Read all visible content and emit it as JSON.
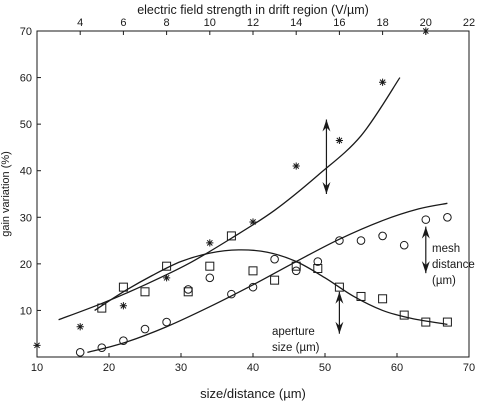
{
  "chart_data": {
    "type": "scatter",
    "title": "",
    "xlabel": "size/distance (µm)",
    "ylabel": "gain variation (%)",
    "x2label": "electric field strength in drift region (V/µm)",
    "xlim": [
      10,
      70
    ],
    "ylim": [
      0,
      70
    ],
    "x2lim": [
      2,
      22
    ],
    "xticks": [
      10,
      20,
      30,
      40,
      50,
      60,
      70
    ],
    "yticks": [
      10,
      20,
      30,
      40,
      50,
      60,
      70
    ],
    "x2ticks": [
      4,
      6,
      8,
      10,
      12,
      14,
      16,
      18,
      20,
      22
    ],
    "grid": false,
    "legend": "none",
    "annotations": {
      "mesh": [
        "mesh",
        "distance",
        "(µm)"
      ],
      "aperture": [
        "aperture",
        "size (µm)"
      ]
    },
    "series": [
      {
        "marker": "star",
        "axis": "top",
        "x": [
          2,
          4,
          6,
          8,
          10,
          12,
          14,
          16,
          18,
          20
        ],
        "y": [
          2.5,
          6.5,
          11,
          17,
          24.5,
          29,
          41,
          46.5,
          59,
          70
        ],
        "fit": [
          [
            3,
            8
          ],
          [
            5,
            11.5
          ],
          [
            7,
            15.5
          ],
          [
            9,
            20
          ],
          [
            11,
            25.5
          ],
          [
            13,
            31.5
          ],
          [
            15,
            39
          ],
          [
            17,
            47.5
          ],
          [
            18.8,
            60
          ]
        ]
      },
      {
        "marker": "square",
        "axis": "bottom",
        "x": [
          19,
          22,
          25,
          28,
          31,
          34,
          37,
          40,
          43,
          46,
          49,
          52,
          55,
          58,
          61,
          64,
          67
        ],
        "y": [
          10.5,
          15,
          14,
          19.5,
          14,
          19.5,
          26,
          18.5,
          16.5,
          19.5,
          19,
          15,
          13,
          12.5,
          9,
          7.5,
          7.5
        ],
        "fit": [
          [
            18,
            10
          ],
          [
            22,
            14
          ],
          [
            26,
            17.5
          ],
          [
            30,
            20.5
          ],
          [
            34,
            22.3
          ],
          [
            38,
            23
          ],
          [
            42,
            22.5
          ],
          [
            46,
            20.5
          ],
          [
            50,
            17
          ],
          [
            54,
            13
          ],
          [
            58,
            10
          ],
          [
            62,
            8.3
          ],
          [
            67,
            7
          ]
        ]
      },
      {
        "marker": "circle",
        "axis": "bottom",
        "x": [
          16,
          19,
          22,
          25,
          28,
          31,
          34,
          37,
          40,
          43,
          46,
          49,
          52,
          55,
          58,
          61,
          64,
          67
        ],
        "y": [
          1,
          2,
          3.5,
          6,
          7.5,
          14.5,
          17,
          13.5,
          15,
          21,
          18.5,
          20.5,
          25,
          25,
          26,
          24,
          29.5,
          30
        ],
        "fit": [
          [
            17,
            1
          ],
          [
            22,
            3
          ],
          [
            28,
            6.5
          ],
          [
            34,
            10.8
          ],
          [
            40,
            15.5
          ],
          [
            46,
            20.5
          ],
          [
            52,
            25.3
          ],
          [
            58,
            29.3
          ],
          [
            63,
            31.8
          ],
          [
            67,
            33
          ]
        ]
      }
    ],
    "arrows": [
      {
        "x": 50.2,
        "axis": "bottom",
        "y_from": 51,
        "y_to": 35
      },
      {
        "x": 64,
        "axis": "bottom",
        "y_from": 28,
        "y_to": 18
      },
      {
        "x": 52,
        "axis": "bottom",
        "y_from": 14,
        "y_to": 5
      }
    ]
  }
}
